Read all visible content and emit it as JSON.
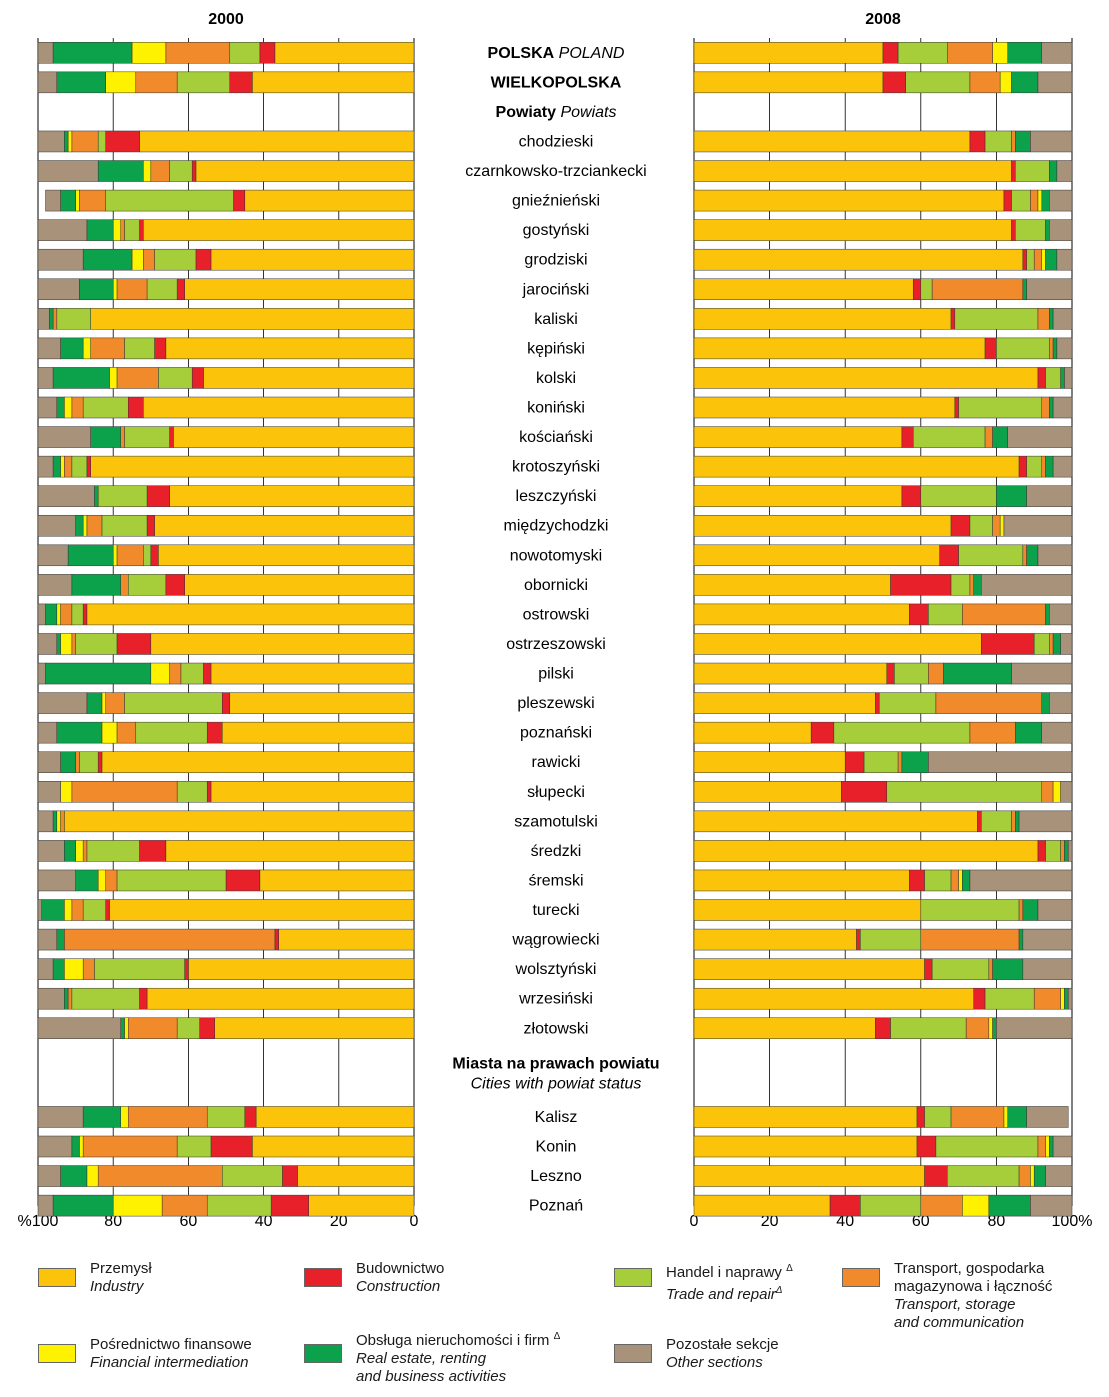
{
  "chart_data": {
    "type": "bar",
    "stacked": true,
    "horizontal": true,
    "unit": "%",
    "colors": {
      "industry": "#FBC40A",
      "construction": "#E8202A",
      "trade": "#A5CE3A",
      "transport": "#F18A2A",
      "finance": "#FFF200",
      "realestate": "#0BA24B",
      "other": "#A8927A"
    },
    "series_order": [
      "industry",
      "construction",
      "trade",
      "transport",
      "finance",
      "realestate",
      "other"
    ],
    "panels": [
      {
        "title": "2000",
        "direction": "right-to-left",
        "ticks": [
          "%100",
          "80",
          "60",
          "40",
          "20",
          "0"
        ]
      },
      {
        "title": "2008",
        "direction": "left-to-right",
        "ticks": [
          "0",
          "20",
          "40",
          "60",
          "80",
          "100%"
        ]
      }
    ],
    "rows": [
      {
        "kind": "national",
        "label": "POLSKA",
        "label_en": "POLAND",
        "v2000": [
          37,
          4,
          8,
          17,
          9,
          21,
          4
        ],
        "v2008": [
          50,
          4,
          13,
          12,
          4,
          9,
          8
        ]
      },
      {
        "kind": "region",
        "label": "WIELKOPOLSKA",
        "label_en": "",
        "v2000": [
          43,
          6,
          14,
          11,
          8,
          13,
          5
        ],
        "v2008": [
          50,
          6,
          17,
          8,
          3,
          7,
          9
        ]
      },
      {
        "kind": "section",
        "label": "Powiaty",
        "label_en": "Powiats"
      },
      {
        "label": "chodzieski",
        "v2000": [
          73,
          9,
          2,
          7,
          1,
          1,
          7
        ],
        "v2008": [
          73,
          4,
          7,
          1,
          0,
          4,
          11
        ]
      },
      {
        "label": "czarnkowsko-trzciankecki",
        "v2000": [
          58,
          1,
          6,
          5,
          2,
          12,
          16
        ],
        "v2008": [
          84,
          1,
          9,
          0,
          0,
          2,
          4
        ]
      },
      {
        "label": "gnieźnieński",
        "v2000": [
          45,
          3,
          34,
          7,
          1,
          4,
          4
        ],
        "v2008": [
          82,
          2,
          5,
          2,
          1,
          2,
          6
        ]
      },
      {
        "label": "gostyński",
        "v2000": [
          72,
          1,
          4,
          1,
          2,
          7,
          13
        ],
        "v2008": [
          84,
          1,
          8,
          0,
          0,
          1,
          6
        ]
      },
      {
        "label": "grodziski",
        "v2000": [
          54,
          4,
          11,
          3,
          3,
          13,
          12
        ],
        "v2008": [
          87,
          1,
          2,
          2,
          1,
          3,
          4
        ]
      },
      {
        "label": "jarociński",
        "v2000": [
          61,
          2,
          8,
          8,
          1,
          9,
          11
        ],
        "v2008": [
          58,
          2,
          3,
          24,
          0,
          1,
          12
        ]
      },
      {
        "label": "kaliski",
        "v2000": [
          86,
          0,
          9,
          1,
          0,
          1,
          3
        ],
        "v2008": [
          68,
          1,
          22,
          3,
          0,
          1,
          5
        ]
      },
      {
        "label": "kępiński",
        "v2000": [
          66,
          3,
          8,
          9,
          2,
          6,
          6
        ],
        "v2008": [
          77,
          3,
          14,
          1,
          0,
          1,
          4
        ]
      },
      {
        "label": "kolski",
        "v2000": [
          56,
          3,
          9,
          11,
          2,
          15,
          4
        ],
        "v2008": [
          91,
          2,
          4,
          0,
          0,
          1,
          2
        ]
      },
      {
        "label": "koniński",
        "v2000": [
          72,
          4,
          12,
          3,
          2,
          2,
          5
        ],
        "v2008": [
          69,
          1,
          22,
          2,
          0,
          1,
          5
        ]
      },
      {
        "label": "kościański",
        "v2000": [
          64,
          1,
          12,
          1,
          0,
          8,
          14
        ],
        "v2008": [
          55,
          3,
          19,
          2,
          0,
          4,
          17
        ]
      },
      {
        "label": "krotoszyński",
        "v2000": [
          86,
          1,
          4,
          2,
          1,
          2,
          4
        ],
        "v2008": [
          86,
          2,
          4,
          1,
          0,
          2,
          5
        ]
      },
      {
        "label": "leszczyński",
        "v2000": [
          65,
          6,
          13,
          0,
          0,
          1,
          15
        ],
        "v2008": [
          55,
          5,
          20,
          0,
          0,
          8,
          12
        ]
      },
      {
        "label": "międzychodzki",
        "v2000": [
          69,
          2,
          12,
          4,
          1,
          2,
          10
        ],
        "v2008": [
          68,
          5,
          6,
          2,
          1,
          0,
          18
        ]
      },
      {
        "label": "nowotomyski",
        "v2000": [
          68,
          2,
          2,
          7,
          1,
          12,
          8
        ],
        "v2008": [
          65,
          5,
          17,
          1,
          0,
          3,
          9
        ]
      },
      {
        "label": "obornicki",
        "v2000": [
          61,
          5,
          10,
          2,
          0,
          13,
          9
        ],
        "v2008": [
          52,
          16,
          5,
          1,
          0,
          2,
          24
        ]
      },
      {
        "label": "ostrowski",
        "v2000": [
          87,
          1,
          3,
          3,
          1,
          3,
          2
        ],
        "v2008": [
          57,
          5,
          9,
          22,
          0,
          1,
          6
        ]
      },
      {
        "label": "ostrzeszowski",
        "v2000": [
          70,
          9,
          11,
          1,
          3,
          1,
          5
        ],
        "v2008": [
          76,
          14,
          4,
          1,
          0,
          2,
          3
        ]
      },
      {
        "label": "pilski",
        "v2000": [
          54,
          2,
          6,
          3,
          5,
          28,
          2
        ],
        "v2008": [
          51,
          2,
          9,
          4,
          0,
          18,
          16
        ]
      },
      {
        "label": "pleszewski",
        "v2000": [
          49,
          2,
          26,
          5,
          1,
          4,
          13
        ],
        "v2008": [
          48,
          1,
          15,
          28,
          0,
          2,
          6
        ]
      },
      {
        "label": "poznański",
        "v2000": [
          51,
          4,
          19,
          5,
          4,
          12,
          5
        ],
        "v2008": [
          31,
          6,
          36,
          12,
          0,
          7,
          8
        ]
      },
      {
        "label": "rawicki",
        "v2000": [
          83,
          1,
          5,
          1,
          0,
          4,
          6
        ],
        "v2008": [
          40,
          5,
          9,
          1,
          0,
          7,
          38
        ]
      },
      {
        "label": "słupecki",
        "v2000": [
          54,
          1,
          8,
          28,
          3,
          0,
          6
        ],
        "v2008": [
          39,
          12,
          41,
          3,
          2,
          0,
          3
        ]
      },
      {
        "label": "szamotulski",
        "v2000": [
          93,
          0,
          0,
          1,
          1,
          1,
          4
        ],
        "v2008": [
          75,
          1,
          8,
          1,
          0,
          1,
          14
        ]
      },
      {
        "label": "średzki",
        "v2000": [
          66,
          7,
          14,
          1,
          2,
          3,
          7
        ],
        "v2008": [
          91,
          2,
          4,
          1,
          0,
          1,
          1
        ]
      },
      {
        "label": "śremski",
        "v2000": [
          41,
          9,
          29,
          3,
          2,
          6,
          10
        ],
        "v2008": [
          57,
          4,
          7,
          2,
          1,
          2,
          27
        ]
      },
      {
        "label": "turecki",
        "v2000": [
          81,
          1,
          6,
          3,
          2,
          6,
          1
        ],
        "v2008": [
          60,
          0,
          26,
          1,
          0,
          4,
          9
        ]
      },
      {
        "label": "wągrowiecki",
        "v2000": [
          36,
          1,
          0,
          56,
          0,
          2,
          5
        ],
        "v2008": [
          43,
          1,
          16,
          26,
          0,
          1,
          13
        ]
      },
      {
        "label": "wolsztyński",
        "v2000": [
          60,
          1,
          24,
          3,
          5,
          3,
          4
        ],
        "v2008": [
          61,
          2,
          15,
          1,
          0,
          8,
          13
        ]
      },
      {
        "label": "wrzesiński",
        "v2000": [
          71,
          2,
          18,
          1,
          0,
          1,
          7
        ],
        "v2008": [
          74,
          3,
          13,
          7,
          1,
          1,
          1
        ]
      },
      {
        "label": "złotowski",
        "v2000": [
          53,
          4,
          6,
          13,
          1,
          1,
          22
        ],
        "v2008": [
          48,
          4,
          20,
          6,
          1,
          1,
          20
        ]
      },
      {
        "kind": "section",
        "label": "Miasta na prawach powiatu",
        "label_en": "Cities with powiat status",
        "bold": true
      },
      {
        "label": "Kalisz",
        "v2000": [
          42,
          3,
          10,
          21,
          2,
          10,
          12
        ],
        "v2008": [
          59,
          2,
          7,
          14,
          1,
          5,
          11
        ]
      },
      {
        "label": "Konin",
        "v2000": [
          43,
          11,
          9,
          25,
          1,
          2,
          9
        ],
        "v2008": [
          59,
          5,
          27,
          2,
          1,
          1,
          5
        ]
      },
      {
        "label": "Leszno",
        "v2000": [
          31,
          4,
          16,
          33,
          3,
          7,
          6
        ],
        "v2008": [
          61,
          6,
          19,
          3,
          1,
          3,
          7
        ]
      },
      {
        "label": "Poznań",
        "v2000": [
          28,
          10,
          17,
          12,
          13,
          16,
          4
        ],
        "v2008": [
          36,
          8,
          16,
          11,
          7,
          11,
          11
        ]
      }
    ]
  },
  "legend": [
    {
      "key": "industry",
      "pl": "Przemysł",
      "en": "Industry"
    },
    {
      "key": "construction",
      "pl": "Budownictwo",
      "en": "Construction"
    },
    {
      "key": "trade",
      "pl": "Handel i naprawy",
      "pl_sup": "Δ",
      "en": "Trade and repair",
      "en_sup": "Δ"
    },
    {
      "key": "transport",
      "pl": "Transport, gospodarka\nmagazynowa i łączność",
      "en": "Transport, storage\nand communication"
    },
    {
      "key": "finance",
      "pl": "Pośrednictwo finansowe",
      "en": "Financial intermediation"
    },
    {
      "key": "realestate",
      "pl": "Obsługa nieruchomości i firm",
      "pl_sup": "Δ",
      "en": "Real estate, renting\nand business activities"
    },
    {
      "key": "other",
      "pl": "Pozostałe sekcje",
      "en": "Other sections"
    }
  ]
}
